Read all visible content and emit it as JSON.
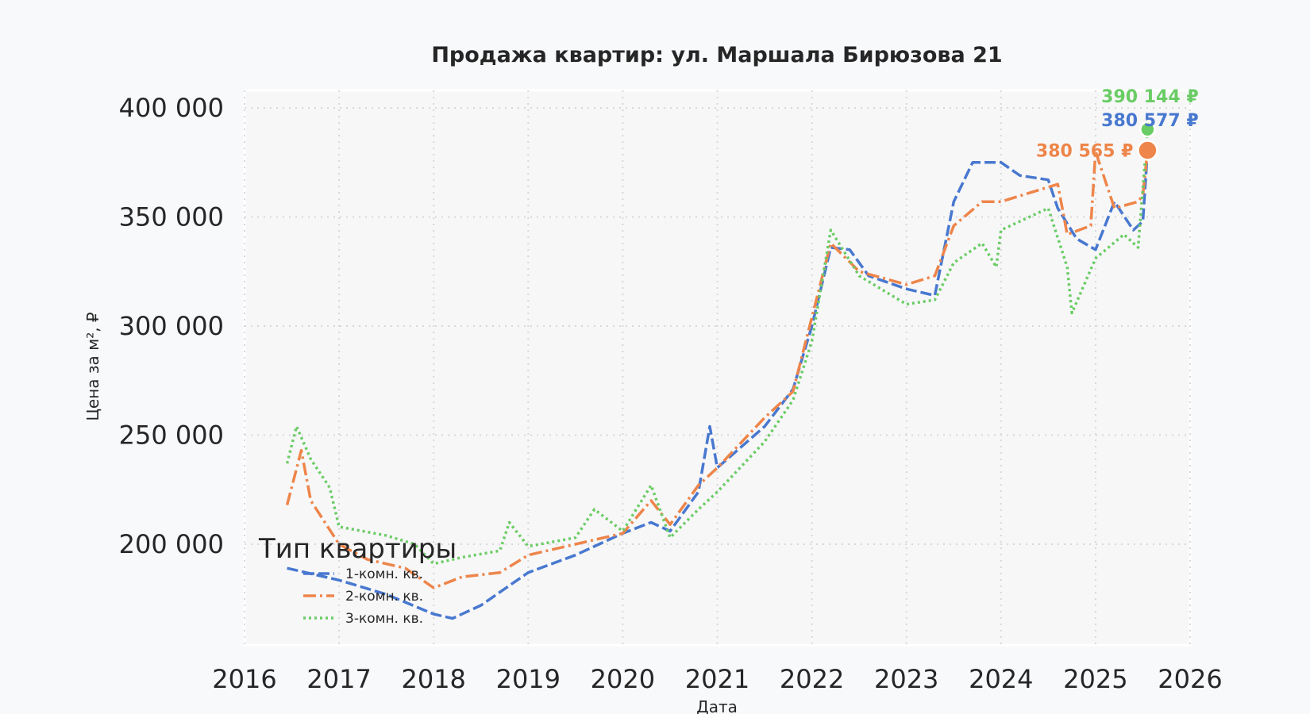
{
  "chart_data": {
    "type": "line",
    "title": "Продажа квартир: ул. Маршала Бирюзова 21",
    "xlabel": "Дата",
    "ylabel": "Цена за м², ₽",
    "xlim": [
      2016,
      2026
    ],
    "ylim": [
      153800,
      408000
    ],
    "x_ticks": [
      "2016",
      "2017",
      "2018",
      "2019",
      "2020",
      "2021",
      "2022",
      "2023",
      "2024",
      "2025",
      "2026"
    ],
    "y_ticks": [
      {
        "value": 200000,
        "label": "200 000"
      },
      {
        "value": 250000,
        "label": "250 000"
      },
      {
        "value": 300000,
        "label": "300 000"
      },
      {
        "value": 350000,
        "label": "350 000"
      },
      {
        "value": 400000,
        "label": "400 000"
      }
    ],
    "grid": true,
    "legend": {
      "title": "Тип квартиры",
      "placement": "lower-left"
    },
    "series": [
      {
        "name": "1-комн. кв.",
        "color": "#4878cf",
        "style": "dashed",
        "x": [
          2016.45,
          2017.0,
          2017.5,
          2018.0,
          2018.2,
          2018.5,
          2018.8,
          2019.0,
          2019.5,
          2020.0,
          2020.3,
          2020.5,
          2020.8,
          2020.92,
          2021.0,
          2021.5,
          2021.8,
          2022.0,
          2022.2,
          2022.4,
          2022.6,
          2023.0,
          2023.3,
          2023.5,
          2023.7,
          2024.0,
          2024.2,
          2024.5,
          2024.6,
          2024.8,
          2025.0,
          2025.2,
          2025.4,
          2025.5,
          2025.55
        ],
        "y": [
          189000,
          183500,
          177000,
          168000,
          166000,
          172000,
          181000,
          187000,
          195000,
          205000,
          210000,
          206000,
          224000,
          254000,
          235000,
          254000,
          271000,
          300000,
          336000,
          335000,
          323000,
          317000,
          314000,
          357000,
          375000,
          375000,
          369000,
          367000,
          354000,
          340000,
          335000,
          357000,
          344000,
          348000,
          380577
        ],
        "last_label": "380 577 ₽"
      },
      {
        "name": "2-комн. кв.",
        "color": "#ee854a",
        "style": "dashdot",
        "x": [
          2016.45,
          2016.6,
          2016.7,
          2017.0,
          2017.3,
          2017.7,
          2018.0,
          2018.3,
          2018.7,
          2019.0,
          2019.5,
          2020.0,
          2020.3,
          2020.5,
          2020.8,
          2021.0,
          2021.5,
          2021.8,
          2022.0,
          2022.2,
          2022.5,
          2023.0,
          2023.3,
          2023.5,
          2023.8,
          2024.0,
          2024.3,
          2024.6,
          2024.7,
          2024.95,
          2025.0,
          2025.2,
          2025.45,
          2025.5,
          2025.55
        ],
        "y": [
          218000,
          243000,
          220000,
          200000,
          193000,
          189000,
          180000,
          185000,
          187000,
          195000,
          200000,
          205000,
          220000,
          209000,
          227000,
          235000,
          258000,
          270000,
          304000,
          338000,
          325000,
          319000,
          323000,
          346000,
          357000,
          357000,
          361000,
          365000,
          342000,
          346000,
          380000,
          354000,
          357000,
          360000,
          380565
        ],
        "last_label": "380 565 ₽"
      },
      {
        "name": "3-комн. кв.",
        "color": "#6acc64",
        "style": "dotted",
        "x": [
          2016.45,
          2016.55,
          2016.7,
          2016.9,
          2017.0,
          2017.5,
          2017.8,
          2018.0,
          2018.3,
          2018.7,
          2018.8,
          2019.0,
          2019.5,
          2019.7,
          2020.0,
          2020.3,
          2020.5,
          2020.8,
          2021.0,
          2021.5,
          2021.8,
          2022.0,
          2022.2,
          2022.5,
          2023.0,
          2023.3,
          2023.5,
          2023.8,
          2023.95,
          2024.0,
          2024.5,
          2024.7,
          2024.75,
          2025.0,
          2025.3,
          2025.45,
          2025.55
        ],
        "y": [
          237000,
          254000,
          239000,
          226000,
          208000,
          204000,
          200000,
          191000,
          194000,
          197000,
          210000,
          199000,
          203000,
          216000,
          206000,
          227000,
          203000,
          216000,
          224000,
          247000,
          266000,
          293000,
          344000,
          323000,
          310000,
          312000,
          329000,
          338000,
          327000,
          344000,
          354000,
          327000,
          306000,
          331000,
          342000,
          336000,
          390144
        ],
        "last_label": "390 144 ₽"
      }
    ]
  }
}
